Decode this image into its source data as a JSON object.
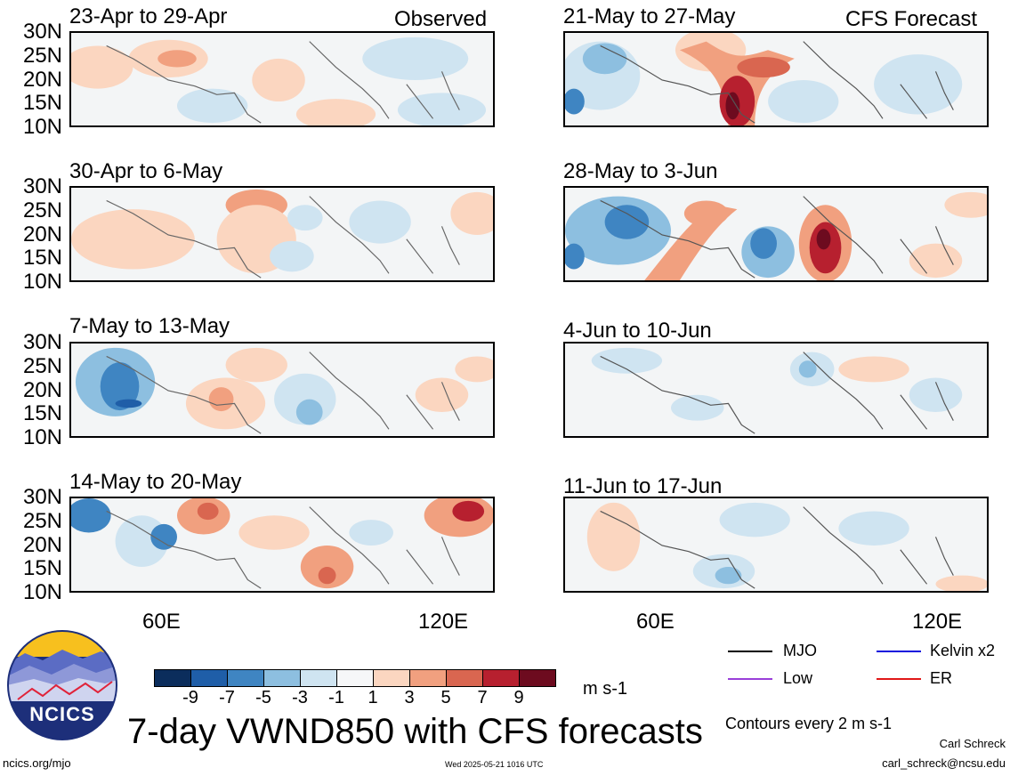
{
  "panels_left": [
    {
      "title": "23-Apr to 29-Apr",
      "tag": "Observed"
    },
    {
      "title": "30-Apr to 6-May",
      "tag": ""
    },
    {
      "title": "7-May to 13-May",
      "tag": ""
    },
    {
      "title": "14-May to 20-May",
      "tag": ""
    }
  ],
  "panels_right": [
    {
      "title": "21-May to 27-May",
      "tag": "CFS Forecast"
    },
    {
      "title": "28-May to 3-Jun",
      "tag": ""
    },
    {
      "title": "4-Jun to 10-Jun",
      "tag": ""
    },
    {
      "title": "11-Jun to 17-Jun",
      "tag": ""
    }
  ],
  "lat_labels": [
    "30N",
    "25N",
    "20N",
    "15N",
    "10N"
  ],
  "lon_labels": [
    "60E",
    "120E"
  ],
  "colorbar": {
    "colors": [
      "#0b2d5c",
      "#1f5ea8",
      "#3f85c2",
      "#8dbfe0",
      "#cfe4f1",
      "#f6f7f8",
      "#fbd6c0",
      "#f1a07f",
      "#d96650",
      "#b7202f",
      "#6d0b1f"
    ],
    "labels": [
      "-9",
      "-7",
      "-5",
      "-3",
      "-1",
      "1",
      "3",
      "5",
      "7",
      "9"
    ],
    "unit": "m s-1"
  },
  "legend": [
    {
      "label": "MJO",
      "color": "#000000"
    },
    {
      "label": "Kelvin x2",
      "color": "#1111dd"
    },
    {
      "label": "Low",
      "color": "#9a3fd9"
    },
    {
      "label": "ER",
      "color": "#e01818"
    }
  ],
  "contour_note": "Contours every 2 m s-1",
  "title": "7-day VWND850 with CFS forecasts",
  "logo_text": "NCICS",
  "footer": {
    "left": "ncics.org/mjo",
    "center": "Wed 2025-05-21 1016 UTC",
    "author": "Carl Schreck",
    "email": "carl_schreck@ncsu.edu"
  }
}
